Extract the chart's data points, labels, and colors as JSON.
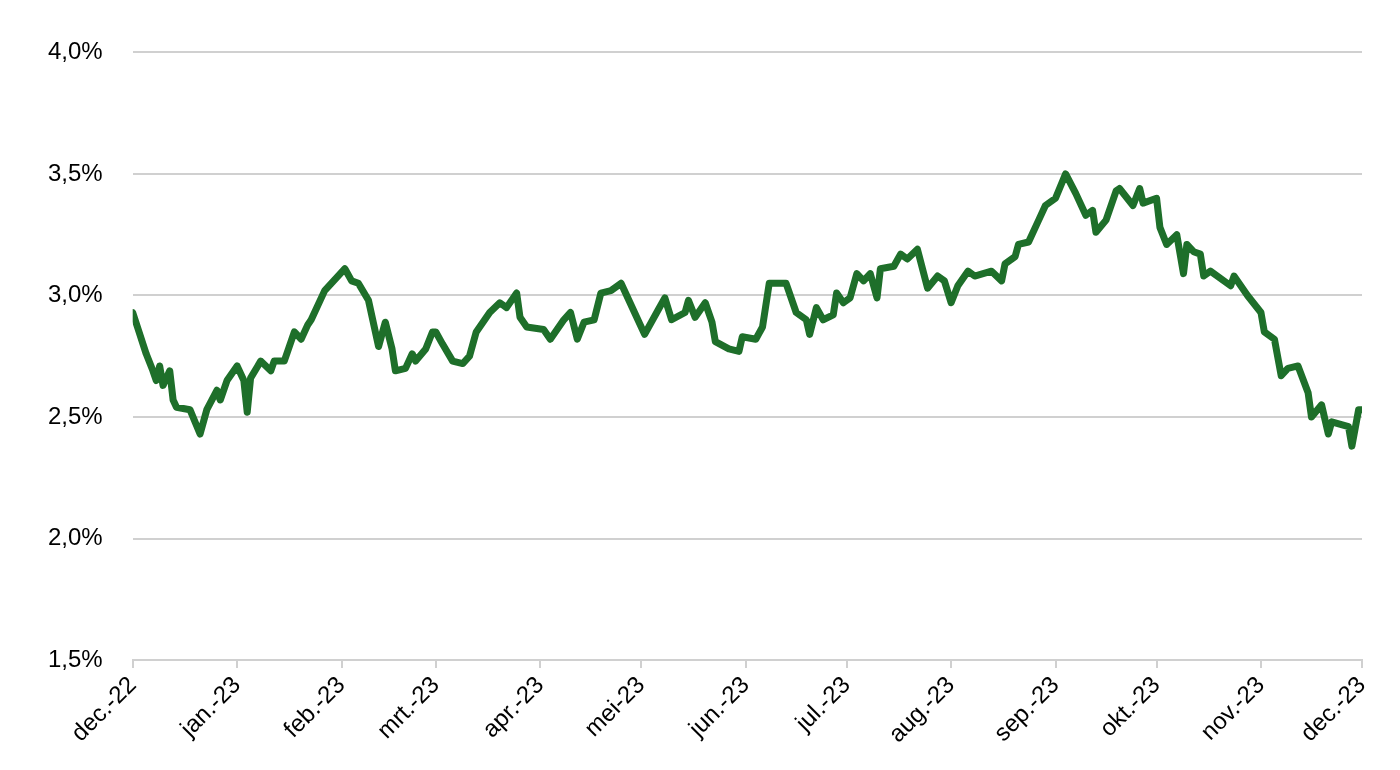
{
  "chart_data": {
    "type": "line",
    "x": [
      "2022-12-01",
      "2022-12-05",
      "2022-12-07",
      "2022-12-08",
      "2022-12-09",
      "2022-12-10",
      "2022-12-12",
      "2022-12-13",
      "2022-12-14",
      "2022-12-18",
      "2022-12-21",
      "2022-12-23",
      "2022-12-26",
      "2022-12-27",
      "2022-12-29",
      "2023-01-01",
      "2023-01-03",
      "2023-01-04",
      "2023-01-05",
      "2023-01-08",
      "2023-01-11",
      "2023-01-12",
      "2023-01-15",
      "2023-01-18",
      "2023-01-20",
      "2023-01-22",
      "2023-01-23",
      "2023-01-27",
      "2023-02-02",
      "2023-02-04",
      "2023-02-06",
      "2023-02-09",
      "2023-02-12",
      "2023-02-14",
      "2023-02-16",
      "2023-02-17",
      "2023-02-20",
      "2023-02-22",
      "2023-02-23",
      "2023-02-26",
      "2023-02-28",
      "2023-03-01",
      "2023-03-03",
      "2023-03-06",
      "2023-03-09",
      "2023-03-11",
      "2023-03-13",
      "2023-03-17",
      "2023-03-20",
      "2023-03-22",
      "2023-03-25",
      "2023-03-26",
      "2023-03-28",
      "2023-04-02",
      "2023-04-04",
      "2023-04-08",
      "2023-04-10",
      "2023-04-12",
      "2023-04-14",
      "2023-04-17",
      "2023-04-19",
      "2023-04-22",
      "2023-04-25",
      "2023-04-29",
      "2023-05-02",
      "2023-05-06",
      "2023-05-08",
      "2023-05-10",
      "2023-05-14",
      "2023-05-15",
      "2023-05-17",
      "2023-05-20",
      "2023-05-22",
      "2023-05-23",
      "2023-05-27",
      "2023-05-30",
      "2023-05-31",
      "2023-06-04",
      "2023-06-06",
      "2023-06-08",
      "2023-06-13",
      "2023-06-16",
      "2023-06-19",
      "2023-06-20",
      "2023-06-22",
      "2023-06-24",
      "2023-06-27",
      "2023-06-28",
      "2023-06-30",
      "2023-07-02",
      "2023-07-04",
      "2023-07-06",
      "2023-07-08",
      "2023-07-10",
      "2023-07-11",
      "2023-07-15",
      "2023-07-17",
      "2023-07-19",
      "2023-07-22",
      "2023-07-25",
      "2023-07-28",
      "2023-07-30",
      "2023-08-01",
      "2023-08-03",
      "2023-08-06",
      "2023-08-08",
      "2023-08-13",
      "2023-08-16",
      "2023-08-17",
      "2023-08-20",
      "2023-08-21",
      "2023-08-24",
      "2023-08-27",
      "2023-08-29",
      "2023-09-01",
      "2023-09-04",
      "2023-09-07",
      "2023-09-10",
      "2023-09-12",
      "2023-09-13",
      "2023-09-16",
      "2023-09-19",
      "2023-09-20",
      "2023-09-24",
      "2023-09-26",
      "2023-09-27",
      "2023-10-01",
      "2023-10-02",
      "2023-10-04",
      "2023-10-07",
      "2023-10-09",
      "2023-10-10",
      "2023-10-12",
      "2023-10-14",
      "2023-10-15",
      "2023-10-17",
      "2023-10-23",
      "2023-10-24",
      "2023-10-28",
      "2023-11-01",
      "2023-11-02",
      "2023-11-05",
      "2023-11-07",
      "2023-11-09",
      "2023-11-12",
      "2023-11-15",
      "2023-11-16",
      "2023-11-19",
      "2023-11-21",
      "2023-11-22",
      "2023-11-27",
      "2023-11-28",
      "2023-11-30",
      "2023-12-01"
    ],
    "series": [
      {
        "color": "#1e6f2a",
        "values": [
          2.93,
          2.76,
          2.69,
          2.65,
          2.71,
          2.63,
          2.69,
          2.57,
          2.54,
          2.53,
          2.43,
          2.53,
          2.61,
          2.57,
          2.65,
          2.71,
          2.65,
          2.52,
          2.66,
          2.73,
          2.69,
          2.73,
          2.73,
          2.85,
          2.82,
          2.88,
          2.9,
          3.02,
          3.11,
          3.06,
          3.05,
          2.98,
          2.79,
          2.89,
          2.78,
          2.69,
          2.7,
          2.76,
          2.73,
          2.78,
          2.85,
          2.85,
          2.8,
          2.73,
          2.72,
          2.75,
          2.85,
          2.93,
          2.97,
          2.95,
          3.01,
          2.91,
          2.87,
          2.86,
          2.82,
          2.9,
          2.93,
          2.82,
          2.89,
          2.9,
          3.01,
          3.02,
          3.05,
          2.93,
          2.84,
          2.94,
          2.99,
          2.9,
          2.93,
          2.98,
          2.91,
          2.97,
          2.89,
          2.81,
          2.78,
          2.77,
          2.83,
          2.82,
          2.87,
          3.05,
          3.05,
          2.93,
          2.9,
          2.84,
          2.95,
          2.9,
          2.92,
          3.01,
          2.97,
          2.99,
          3.09,
          3.06,
          3.09,
          2.99,
          3.11,
          3.12,
          3.17,
          3.15,
          3.19,
          3.03,
          3.08,
          3.06,
          2.97,
          3.04,
          3.1,
          3.08,
          3.1,
          3.06,
          3.13,
          3.16,
          3.21,
          3.22,
          3.31,
          3.37,
          3.4,
          3.5,
          3.42,
          3.33,
          3.35,
          3.26,
          3.31,
          3.43,
          3.44,
          3.37,
          3.44,
          3.38,
          3.4,
          3.28,
          3.21,
          3.25,
          3.09,
          3.21,
          3.18,
          3.17,
          3.08,
          3.1,
          3.04,
          3.08,
          3.0,
          2.93,
          2.85,
          2.82,
          2.67,
          2.7,
          2.71,
          2.6,
          2.5,
          2.55,
          2.43,
          2.48,
          2.46,
          2.38,
          2.53,
          2.53
        ]
      }
    ],
    "xlim": [
      "2022-12-01",
      "2023-12-01"
    ],
    "xticks": [
      {
        "value": "2022-12-01",
        "label": "dec.-22"
      },
      {
        "value": "2023-01-01",
        "label": "jan.-23"
      },
      {
        "value": "2023-02-01",
        "label": "feb.-23"
      },
      {
        "value": "2023-03-01",
        "label": "mrt.-23"
      },
      {
        "value": "2023-04-01",
        "label": "apr.-23"
      },
      {
        "value": "2023-05-01",
        "label": "mei-23"
      },
      {
        "value": "2023-06-01",
        "label": "jun.-23"
      },
      {
        "value": "2023-07-01",
        "label": "jul.-23"
      },
      {
        "value": "2023-08-01",
        "label": "aug.-23"
      },
      {
        "value": "2023-09-01",
        "label": "sep.-23"
      },
      {
        "value": "2023-10-01",
        "label": "okt.-23"
      },
      {
        "value": "2023-11-01",
        "label": "nov.-23"
      },
      {
        "value": "2023-12-01",
        "label": "dec.-23"
      }
    ],
    "ylim": [
      1.5,
      4.0
    ],
    "yticks": [
      {
        "value": 1.5,
        "label": "1,5%"
      },
      {
        "value": 2.0,
        "label": "2,0%"
      },
      {
        "value": 2.5,
        "label": "2,5%"
      },
      {
        "value": 3.0,
        "label": "3,0%"
      },
      {
        "value": 3.5,
        "label": "3,5%"
      },
      {
        "value": 4.0,
        "label": "4,0%"
      }
    ],
    "grid": "y",
    "legend": false,
    "marker": "none",
    "line_style": "solid"
  }
}
